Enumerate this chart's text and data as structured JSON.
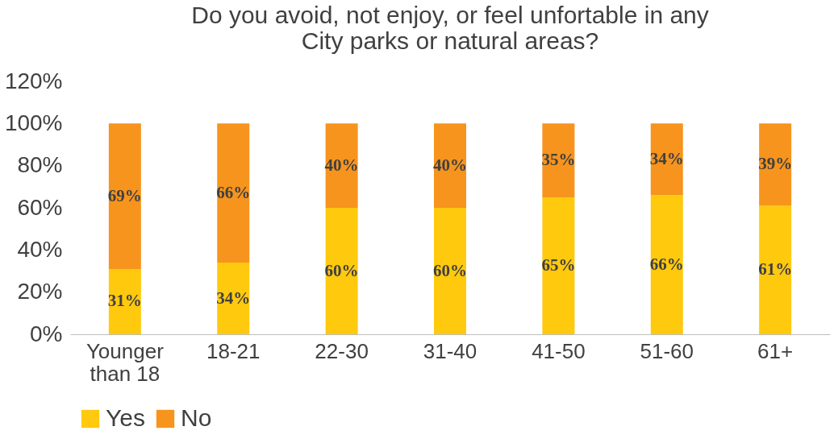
{
  "chart_data": {
    "type": "bar",
    "stacked": true,
    "title": "Do you avoid, not enjoy, or feel unfortable in any\nCity parks or natural areas?",
    "categories": [
      "Younger than 18",
      "18-21",
      "22-30",
      "31-40",
      "41-50",
      "51-60",
      "61+"
    ],
    "series": [
      {
        "name": "Yes",
        "color": "#ffc90e",
        "values": [
          31,
          34,
          60,
          60,
          65,
          66,
          61
        ],
        "value_labels": [
          "31%",
          "34%",
          "60%",
          "60%",
          "65%",
          "66%",
          "61%"
        ]
      },
      {
        "name": "No",
        "color": "#f7941d",
        "values": [
          69,
          66,
          40,
          40,
          35,
          34,
          39
        ],
        "value_labels": [
          "69%",
          "66%",
          "40%",
          "40%",
          "35%",
          "34%",
          "39%"
        ]
      }
    ],
    "ylim": [
      0,
      120
    ],
    "yticks": [
      {
        "value": 0,
        "label": "0%"
      },
      {
        "value": 20,
        "label": "20%"
      },
      {
        "value": 40,
        "label": "40%"
      },
      {
        "value": 60,
        "label": "60%"
      },
      {
        "value": 80,
        "label": "80%"
      },
      {
        "value": 100,
        "label": "100%"
      },
      {
        "value": 120,
        "label": "120%"
      }
    ],
    "grid": false,
    "legend": "bottom"
  }
}
